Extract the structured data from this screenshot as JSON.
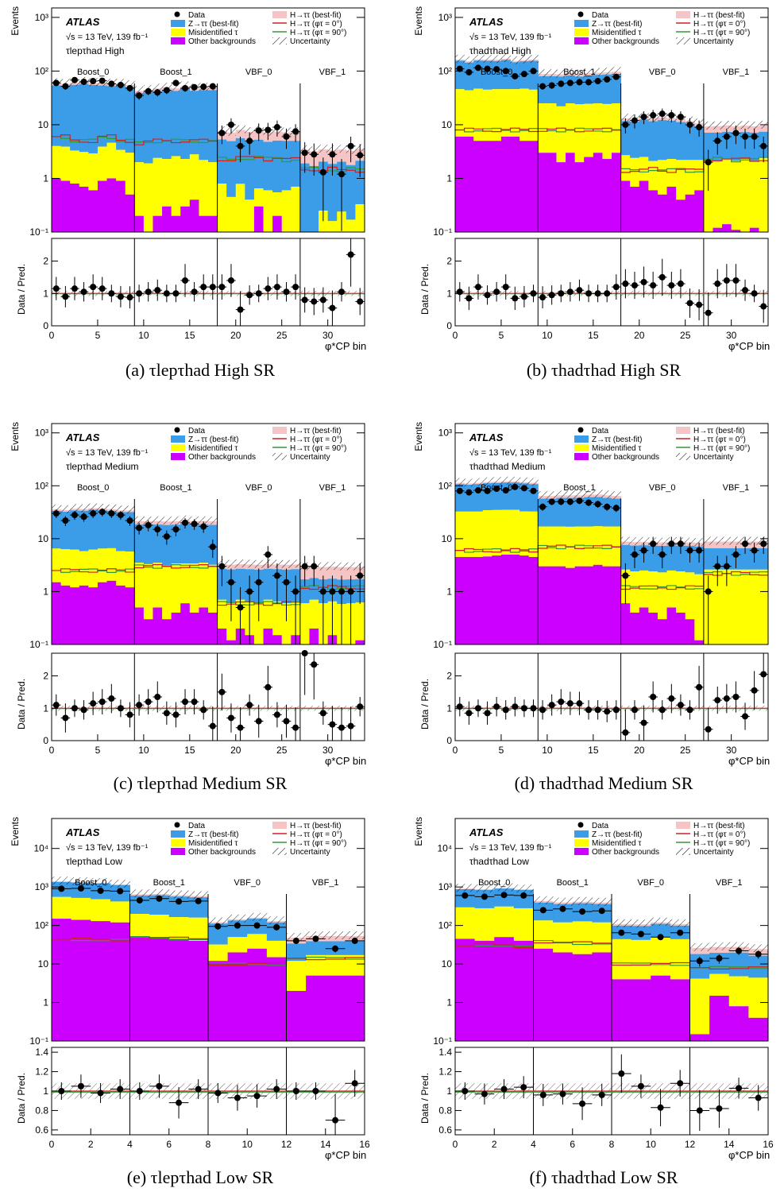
{
  "colors": {
    "ztt": "#3b9ce8",
    "misid": "#ffff00",
    "other": "#cc00ff",
    "htt_fill": "#f5c4c4",
    "line_0": "#cc2222",
    "line_90": "#339933",
    "data": "#000000"
  },
  "legend": {
    "experiment": "ATLAS",
    "energy": "√s = 13 TeV, 139 fb⁻¹",
    "data": "Data",
    "ztt": "Z→ττ (best-fit)",
    "misid": "Misidentified τ",
    "other": "Other backgrounds",
    "htt": "H→ττ (best-fit)",
    "htt0": "H→ττ (φτ = 0°)",
    "htt90": "H→ττ (φτ = 90°)",
    "unc": "Uncertainty"
  },
  "axes": {
    "ylabel_top": "Events",
    "ylabel_bottom": "Data / Pred.",
    "xlabel": "φ*CP  bin"
  },
  "captions": [
    "(a) τlepτhad High SR",
    "(b) τhadτhad High SR",
    "(c) τlepτhad Medium SR",
    "(d) τhadτhad Medium SR",
    "(e) τlepτhad Low SR",
    "(f) τhadτhad Low SR"
  ],
  "chart_data": [
    {
      "type": "bar",
      "id": "a",
      "channel": "τlepτhad",
      "category": "High",
      "nbins": 34,
      "xlim": [
        0,
        34
      ],
      "ylim": [
        0.1,
        1500
      ],
      "ratio_ylim": [
        0,
        2.7
      ],
      "ratio_ticks": [
        0,
        1,
        2
      ],
      "x_ticks": [
        0,
        5,
        10,
        15,
        20,
        25,
        30
      ],
      "y_ticks": [
        "10⁻¹",
        "1",
        "10",
        "10²",
        "10³"
      ],
      "regions": [
        {
          "label": "Boost_0",
          "start": 0,
          "end": 9
        },
        {
          "label": "Boost_1",
          "start": 9,
          "end": 18
        },
        {
          "label": "VBF_0",
          "start": 18,
          "end": 27
        },
        {
          "label": "VBF_1",
          "start": 27,
          "end": 34
        }
      ],
      "other": [
        1,
        0.9,
        0.8,
        0.7,
        0.6,
        0.9,
        1,
        0.9,
        0.5,
        0.2,
        0.1,
        0.2,
        0.3,
        0.2,
        0.3,
        0.4,
        0.2,
        0.2,
        0.1,
        0.05,
        0.09,
        0.1,
        0.3,
        0.1,
        0.2,
        0.1,
        0.1,
        0.05,
        0.04,
        0.1,
        0.02,
        0.06,
        0.02,
        0.03
      ],
      "misid": [
        3,
        3,
        2.5,
        2.4,
        2.3,
        3,
        3.6,
        2.5,
        2.5,
        1.8,
        1.8,
        2.2,
        2,
        2.4,
        2,
        2.4,
        2,
        1.8,
        0.7,
        0.4,
        0.7,
        0.3,
        0.35,
        0.5,
        0.35,
        0.5,
        0.6,
        0.05,
        0.06,
        0.15,
        0.14,
        0.18,
        0.15,
        0.3
      ],
      "ztt": [
        50,
        48,
        52,
        55,
        52,
        50,
        48,
        50,
        47,
        36,
        38,
        40,
        42,
        40,
        45,
        40,
        42,
        42,
        4.5,
        4.5,
        4.8,
        4.5,
        4.6,
        4.2,
        4.5,
        4.4,
        4.3,
        1.8,
        1.6,
        1.8,
        1.7,
        1.8,
        1.6,
        1.8
      ],
      "htt": [
        6,
        6,
        5,
        5,
        5,
        6,
        6,
        5,
        5,
        4.5,
        4.8,
        5,
        5,
        5,
        5,
        5,
        5,
        5,
        2.3,
        2.2,
        2.4,
        2.4,
        2.5,
        2.3,
        2.4,
        2.2,
        2.3,
        1.5,
        1.5,
        1.4,
        1.5,
        1.4,
        1.5,
        1.4
      ],
      "data": [
        60,
        52,
        68,
        63,
        65,
        66,
        58,
        55,
        48,
        35,
        42,
        40,
        44,
        60,
        48,
        50,
        51,
        52,
        7,
        10,
        4,
        5,
        7.8,
        8,
        9,
        6,
        7.5,
        3,
        2.8,
        1.3,
        2.8,
        1.2,
        4,
        2.7
      ],
      "ratio": [
        1.15,
        0.9,
        1.15,
        1.05,
        1.2,
        1.15,
        1,
        0.9,
        0.88,
        1,
        1.05,
        1.1,
        1,
        1,
        1.4,
        1.05,
        1.2,
        1.2,
        1.2,
        1.4,
        0.5,
        0.95,
        1,
        1.15,
        1.2,
        1.05,
        1.2,
        0.8,
        0.75,
        0.8,
        0.55,
        1.05,
        2.2,
        0.75
      ]
    },
    {
      "type": "bar",
      "id": "b",
      "channel": "τhadτhad",
      "category": "High",
      "nbins": 34,
      "xlim": [
        0,
        34
      ],
      "ylim": [
        0.1,
        1500
      ],
      "ratio_ylim": [
        0,
        2.7
      ],
      "ratio_ticks": [
        0,
        1,
        2
      ],
      "x_ticks": [
        0,
        5,
        10,
        15,
        20,
        25,
        30
      ],
      "y_ticks": [
        "10⁻¹",
        "1",
        "10",
        "10²",
        "10³"
      ],
      "regions": [
        {
          "label": "Boost_0",
          "start": 0,
          "end": 9
        },
        {
          "label": "Boost_1",
          "start": 9,
          "end": 18
        },
        {
          "label": "VBF_0",
          "start": 18,
          "end": 27
        },
        {
          "label": "VBF_1",
          "start": 27,
          "end": 34
        }
      ],
      "other": [
        6,
        6,
        5,
        5,
        5,
        6,
        6,
        5,
        5,
        3,
        3,
        2,
        3,
        2,
        2.5,
        3,
        2.3,
        3,
        0.9,
        0.7,
        0.9,
        0.6,
        0.5,
        0.7,
        0.4,
        0.5,
        0.6,
        0.1,
        0.12,
        0.14,
        0.11,
        0.1,
        0.12,
        0.1
      ],
      "misid": [
        40,
        38,
        42,
        40,
        41,
        40,
        40,
        42,
        40,
        22,
        22,
        20,
        22,
        22,
        22,
        22,
        22,
        22,
        1.8,
        1.7,
        1.6,
        1.5,
        1.7,
        1.6,
        1.8,
        1.7,
        1.6,
        2,
        2,
        2.2,
        2,
        2.2,
        2,
        2.3
      ],
      "ztt": [
        110,
        100,
        110,
        110,
        108,
        115,
        100,
        105,
        110,
        55,
        55,
        57,
        58,
        55,
        58,
        60,
        62,
        64,
        9,
        9,
        10,
        9.5,
        10,
        9.5,
        9,
        8,
        7,
        5,
        5,
        5,
        5,
        5,
        5,
        5
      ],
      "htt": [
        8,
        8,
        8,
        8,
        8,
        8,
        8,
        8,
        8,
        8,
        8,
        8,
        8,
        8,
        8,
        8,
        8,
        8,
        1.4,
        1.4,
        1.4,
        1.5,
        1.4,
        1.4,
        1.5,
        1.4,
        1.4,
        2.2,
        2.3,
        2.3,
        2.2,
        2.3,
        2.2,
        2.3
      ],
      "data": [
        110,
        95,
        115,
        110,
        108,
        100,
        80,
        88,
        100,
        52,
        54,
        58,
        60,
        62,
        62,
        65,
        70,
        78,
        10,
        12,
        14,
        15,
        16,
        15,
        14,
        10,
        9,
        2,
        5,
        6,
        7,
        6,
        6,
        4
      ],
      "ratio": [
        1.05,
        0.85,
        1.2,
        0.95,
        1.05,
        1.2,
        0.85,
        0.9,
        1,
        0.88,
        0.95,
        1,
        1.05,
        1.1,
        1,
        1,
        1,
        1.2,
        1.3,
        1.25,
        1.35,
        1.25,
        1.5,
        1.25,
        1.3,
        0.7,
        0.65,
        0.4,
        1.3,
        1.4,
        1.4,
        1.1,
        1,
        0.6
      ]
    },
    {
      "type": "bar",
      "id": "c",
      "channel": "τlepτhad",
      "category": "Medium",
      "nbins": 34,
      "xlim": [
        0,
        34
      ],
      "ylim": [
        0.1,
        1500
      ],
      "ratio_ylim": [
        0,
        2.7
      ],
      "ratio_ticks": [
        0,
        1,
        2
      ],
      "x_ticks": [
        0,
        5,
        10,
        15,
        20,
        25,
        30
      ],
      "y_ticks": [
        "10⁻¹",
        "1",
        "10",
        "10²",
        "10³"
      ],
      "regions": [
        {
          "label": "Boost_0",
          "start": 0,
          "end": 9
        },
        {
          "label": "Boost_1",
          "start": 9,
          "end": 18
        },
        {
          "label": "VBF_0",
          "start": 18,
          "end": 27
        },
        {
          "label": "VBF_1",
          "start": 27,
          "end": 34
        }
      ],
      "other": [
        1.5,
        1.3,
        1.2,
        1.3,
        1.2,
        1.5,
        1.6,
        1.3,
        1.2,
        0.5,
        0.3,
        0.5,
        0.3,
        0.4,
        0.6,
        0.4,
        0.5,
        0.4,
        0.2,
        0.12,
        0.2,
        0.15,
        0.1,
        0.2,
        0.15,
        0.1,
        0.15,
        0.1,
        0.2,
        0.1,
        0.15,
        0.08,
        0.1,
        0.12
      ],
      "misid": [
        5,
        5,
        5,
        4.5,
        5,
        5,
        5,
        4.5,
        4.5,
        3,
        3,
        3,
        2.8,
        3,
        2.8,
        3,
        3,
        2.8,
        0.5,
        0.5,
        0.5,
        0.5,
        0.5,
        0.5,
        0.5,
        0.5,
        0.5,
        0.5,
        0.5,
        0.5,
        0.5,
        0.5,
        0.5,
        0.5
      ],
      "ztt": [
        27,
        26,
        28,
        28,
        29,
        28,
        27,
        26,
        26,
        15,
        15,
        15,
        15,
        15,
        16,
        15,
        15,
        15,
        2,
        2,
        2,
        2,
        2,
        2,
        2,
        2,
        2,
        1.1,
        1.1,
        1.1,
        1.1,
        1.1,
        1.1,
        1.1
      ],
      "htt": [
        2.5,
        2.5,
        2.5,
        2.5,
        2.5,
        2.5,
        2.5,
        2.5,
        2.5,
        3,
        3,
        3,
        3,
        3,
        3,
        3,
        3,
        3,
        0.6,
        0.6,
        0.6,
        0.6,
        0.6,
        0.6,
        0.6,
        0.6,
        0.6,
        1.2,
        1.2,
        1.2,
        1.2,
        1.2,
        1.2,
        1.2
      ],
      "data": [
        30,
        22,
        28,
        26,
        30,
        32,
        30,
        28,
        22,
        16,
        18,
        15,
        11,
        15,
        20,
        19,
        17,
        7,
        3,
        1.5,
        0.5,
        1,
        1.5,
        5,
        2,
        1.5,
        1,
        3,
        3,
        1,
        1,
        1,
        1,
        2
      ],
      "ratio": [
        1.1,
        0.7,
        1,
        0.95,
        1.15,
        1.2,
        1.3,
        1,
        0.8,
        1.1,
        1.2,
        1.35,
        0.85,
        0.8,
        1.2,
        1.2,
        0.95,
        0.45,
        1.5,
        0.7,
        0.4,
        1.1,
        0.6,
        1.65,
        0.8,
        0.6,
        0.4,
        2.7,
        2.35,
        0.85,
        0.5,
        0.4,
        0.45,
        1.05
      ]
    },
    {
      "type": "bar",
      "id": "d",
      "channel": "τhadτhad",
      "category": "Medium",
      "nbins": 34,
      "xlim": [
        0,
        34
      ],
      "ylim": [
        0.1,
        1500
      ],
      "ratio_ylim": [
        0,
        2.7
      ],
      "ratio_ticks": [
        0,
        1,
        2
      ],
      "x_ticks": [
        0,
        5,
        10,
        15,
        20,
        25,
        30
      ],
      "y_ticks": [
        "10⁻¹",
        "1",
        "10",
        "10²",
        "10³"
      ],
      "regions": [
        {
          "label": "Boost_0",
          "start": 0,
          "end": 9
        },
        {
          "label": "Boost_1",
          "start": 9,
          "end": 18
        },
        {
          "label": "VBF_0",
          "start": 18,
          "end": 27
        },
        {
          "label": "VBF_1",
          "start": 27,
          "end": 34
        }
      ],
      "other": [
        4.5,
        4.5,
        4.5,
        4.6,
        4.8,
        5,
        5,
        4.8,
        4.5,
        3,
        3,
        3,
        2.8,
        3,
        3,
        3.2,
        3,
        3,
        0.6,
        0.4,
        0.5,
        0.4,
        0.3,
        0.5,
        0.4,
        0.3,
        0.12,
        0.1,
        0.1,
        0.1,
        0.1,
        0.1,
        0.1,
        0.1
      ],
      "misid": [
        28,
        28,
        28,
        30,
        30,
        30,
        30,
        28,
        28,
        14,
        14,
        14,
        14,
        14,
        14,
        14,
        14,
        14,
        2,
        2,
        2,
        2,
        2,
        2,
        2,
        2,
        2,
        2.5,
        2.5,
        2.5,
        2.5,
        2.5,
        2.5,
        2.5
      ],
      "ztt": [
        75,
        72,
        75,
        77,
        78,
        80,
        80,
        78,
        75,
        40,
        40,
        42,
        42,
        42,
        44,
        44,
        42,
        40,
        5,
        5,
        5,
        5,
        5,
        5,
        5,
        5,
        5,
        4,
        4,
        4,
        4,
        4,
        4,
        4
      ],
      "htt": [
        6,
        6,
        6,
        6,
        6,
        6,
        6,
        6,
        6,
        7,
        7,
        7,
        7,
        7,
        7,
        7,
        7,
        7,
        1.2,
        1.2,
        1.2,
        1.2,
        1.2,
        1.2,
        1.2,
        1.2,
        1.2,
        2.2,
        2.2,
        2.2,
        2.2,
        2.2,
        2.2,
        2.2
      ],
      "data": [
        80,
        75,
        82,
        80,
        88,
        82,
        95,
        90,
        80,
        40,
        50,
        50,
        50,
        52,
        48,
        45,
        40,
        38,
        2,
        5,
        6,
        8,
        5,
        8,
        8,
        6,
        6,
        1,
        3,
        3,
        5,
        8,
        6,
        8
      ],
      "ratio": [
        1.05,
        0.85,
        1,
        0.85,
        1.05,
        0.95,
        1.05,
        1,
        1,
        0.95,
        1.1,
        1.2,
        1.15,
        1.15,
        0.95,
        0.95,
        0.9,
        0.95,
        0.25,
        0.95,
        0.55,
        1.35,
        0.95,
        1.3,
        1.1,
        0.95,
        1.65,
        0.35,
        1.25,
        1.3,
        1.35,
        0.75,
        1.55,
        2.05
      ]
    },
    {
      "type": "bar",
      "id": "e",
      "channel": "τlepτhad",
      "category": "Low",
      "nbins": 16,
      "xlim": [
        0,
        16
      ],
      "ylim": [
        0.1,
        60000
      ],
      "ratio_ylim": [
        0.55,
        1.45
      ],
      "ratio_ticks": [
        0.6,
        0.8,
        1,
        1.2,
        1.4
      ],
      "x_ticks": [
        0,
        2,
        4,
        6,
        8,
        10,
        12,
        14,
        16
      ],
      "y_ticks": [
        "10⁻¹",
        "1",
        "10",
        "10²",
        "10³",
        "10⁴"
      ],
      "regions": [
        {
          "label": "Boost_0",
          "start": 0,
          "end": 4
        },
        {
          "label": "Boost_1",
          "start": 4,
          "end": 8
        },
        {
          "label": "VBF_0",
          "start": 8,
          "end": 12
        },
        {
          "label": "VBF_1",
          "start": 12,
          "end": 16
        }
      ],
      "other": [
        150,
        140,
        130,
        120,
        50,
        50,
        45,
        40,
        12,
        20,
        25,
        15,
        2,
        5,
        5,
        5
      ],
      "misid": [
        400,
        380,
        350,
        300,
        150,
        140,
        120,
        120,
        20,
        30,
        35,
        25,
        10,
        12,
        12,
        12
      ],
      "ztt": [
        800,
        780,
        760,
        700,
        400,
        420,
        400,
        380,
        80,
        85,
        90,
        80,
        22,
        22,
        22,
        22
      ],
      "htt": [
        44,
        44,
        42,
        42,
        48,
        48,
        46,
        44,
        10,
        10,
        10,
        10,
        14,
        14,
        14,
        14
      ],
      "data": [
        900,
        920,
        800,
        780,
        450,
        500,
        420,
        430,
        95,
        100,
        100,
        90,
        40,
        45,
        25,
        40
      ],
      "ratio": [
        1,
        1.05,
        0.98,
        1.02,
        1,
        1.05,
        0.88,
        1.02,
        0.98,
        0.93,
        0.95,
        1.02,
        1,
        1,
        0.7,
        1.08
      ]
    },
    {
      "type": "bar",
      "id": "f",
      "channel": "τhadτhad",
      "category": "Low",
      "nbins": 16,
      "xlim": [
        0,
        16
      ],
      "ylim": [
        0.1,
        60000
      ],
      "ratio_ylim": [
        0.55,
        1.45
      ],
      "ratio_ticks": [
        0.6,
        0.8,
        1,
        1.2,
        1.4
      ],
      "x_ticks": [
        0,
        2,
        4,
        6,
        8,
        10,
        12,
        14,
        16
      ],
      "y_ticks": [
        "10⁻¹",
        "1",
        "10",
        "10²",
        "10³",
        "10⁴"
      ],
      "regions": [
        {
          "label": "Boost_0",
          "start": 0,
          "end": 4
        },
        {
          "label": "Boost_1",
          "start": 4,
          "end": 8
        },
        {
          "label": "VBF_0",
          "start": 8,
          "end": 12
        },
        {
          "label": "VBF_1",
          "start": 12,
          "end": 16
        }
      ],
      "other": [
        45,
        40,
        50,
        40,
        25,
        20,
        18,
        20,
        4,
        4,
        5,
        4,
        0.15,
        1.5,
        0.8,
        0.4
      ],
      "misid": [
        250,
        240,
        260,
        240,
        110,
        100,
        110,
        100,
        40,
        38,
        45,
        40,
        4,
        4,
        4,
        4
      ],
      "ztt": [
        580,
        560,
        600,
        560,
        260,
        240,
        250,
        240,
        55,
        55,
        60,
        55,
        14,
        14,
        15,
        12
      ],
      "htt": [
        30,
        32,
        30,
        28,
        38,
        36,
        35,
        34,
        10,
        10,
        10,
        10,
        8,
        8,
        8,
        8
      ],
      "data": [
        600,
        560,
        620,
        600,
        250,
        270,
        230,
        240,
        65,
        60,
        50,
        65,
        12,
        14,
        22,
        18
      ],
      "ratio": [
        1,
        0.97,
        1.02,
        1.04,
        0.96,
        0.97,
        0.87,
        0.96,
        1.18,
        1.05,
        0.83,
        1.08,
        0.8,
        0.82,
        1.03,
        0.93
      ]
    }
  ]
}
